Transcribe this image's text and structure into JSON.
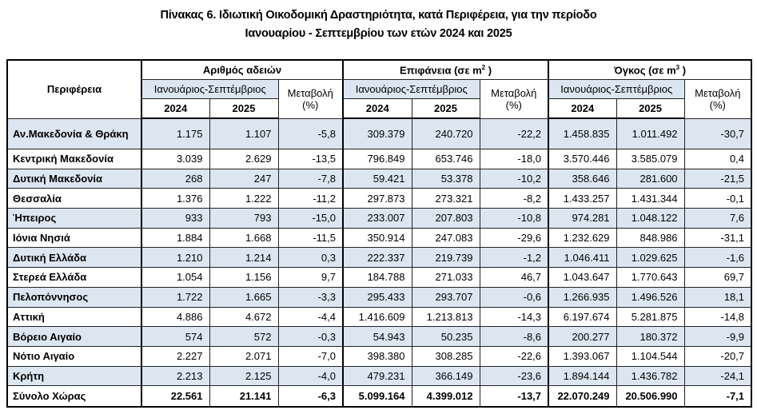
{
  "title": {
    "line1": "Πίνακας 6. Ιδιωτική  Οικοδομική Δραστηριότητα, κατά Περιφέρεια, για την περίοδο",
    "line2": "Ιανουαρίου - Σεπτεμβρίου των ετών 2024 και 2025"
  },
  "header": {
    "region": "Περιφέρεια",
    "groups": [
      {
        "label": "Αριθμός αδειών",
        "unit_sup": ""
      },
      {
        "label": "Επιφάνεια (σε m",
        "unit_sup": "2",
        "close": " )"
      },
      {
        "label": "Όγκος (σε m",
        "unit_sup": "3",
        "close": " )"
      }
    ],
    "period": "Ιανουάριος-Σεπτέμβριος",
    "change": "Μεταβολή",
    "change_unit": "(%)",
    "year1": "2024",
    "year2": "2025"
  },
  "rows": [
    [
      "Αν.Μακεδονία & Θράκη",
      "1.175",
      "1.107",
      "-5,8",
      "309.379",
      "240.720",
      "-22,2",
      "1.458.835",
      "1.011.492",
      "-30,7"
    ],
    [
      "Κεντρική Μακεδονία",
      "3.039",
      "2.629",
      "-13,5",
      "796.849",
      "653.746",
      "-18,0",
      "3.570.446",
      "3.585.079",
      "0,4"
    ],
    [
      "Δυτική Μακεδονία",
      "268",
      "247",
      "-7,8",
      "59.421",
      "53.378",
      "-10,2",
      "358.646",
      "281.600",
      "-21,5"
    ],
    [
      "Θεσσαλία",
      "1.376",
      "1.222",
      "-11,2",
      "297.873",
      "273.321",
      "-8,2",
      "1.433.257",
      "1.431.344",
      "-0,1"
    ],
    [
      "Ήπειρος",
      "933",
      "793",
      "-15,0",
      "233.007",
      "207.803",
      "-10,8",
      "974.281",
      "1.048.122",
      "7,6"
    ],
    [
      "Ιόνια Νησιά",
      "1.884",
      "1.668",
      "-11,5",
      "350.914",
      "247.083",
      "-29,6",
      "1.232.629",
      "848.986",
      "-31,1"
    ],
    [
      "Δυτική Ελλάδα",
      "1.210",
      "1.214",
      "0,3",
      "222.337",
      "219.739",
      "-1,2",
      "1.046.411",
      "1.029.625",
      "-1,6"
    ],
    [
      "Στερεά Ελλάδα",
      "1.054",
      "1.156",
      "9,7",
      "184.788",
      "271.033",
      "46,7",
      "1.043.647",
      "1.770.643",
      "69,7"
    ],
    [
      "Πελοπόννησος",
      "1.722",
      "1.665",
      "-3,3",
      "295.433",
      "293.707",
      "-0,6",
      "1.266.935",
      "1.496.526",
      "18,1"
    ],
    [
      "Αττική",
      "4.886",
      "4.672",
      "-4,4",
      "1.416.609",
      "1.213.813",
      "-14,3",
      "6.197.674",
      "5.281.875",
      "-14,8"
    ],
    [
      "Βόρειο Αιγαίο",
      "574",
      "572",
      "-0,3",
      "54.943",
      "50.235",
      "-8,6",
      "200.277",
      "180.372",
      "-9,9"
    ],
    [
      "Νότιο Αιγαίο",
      "2.227",
      "2.071",
      "-7,0",
      "398.380",
      "308.285",
      "-22,6",
      "1.393.067",
      "1.104.544",
      "-20,7"
    ],
    [
      "Κρήτη",
      "2.213",
      "2.125",
      "-4,0",
      "479.231",
      "366.149",
      "-23,6",
      "1.894.144",
      "1.436.782",
      "-24,1"
    ],
    [
      "Σύνολο Χώρας",
      "22.561",
      "21.141",
      "-6,3",
      "5.099.164",
      "4.399.012",
      "-13,7",
      "22.070.249",
      "20.506.990",
      "-7,1"
    ]
  ],
  "colors": {
    "shade": "#dce6f1",
    "border": "#222222"
  }
}
